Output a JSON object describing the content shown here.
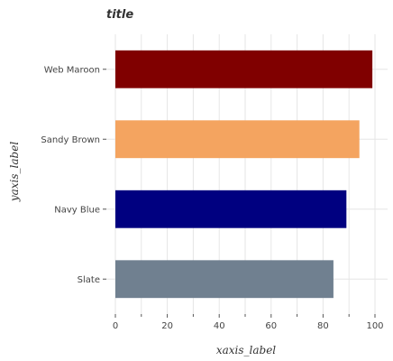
{
  "chart_data": {
    "type": "bar",
    "orientation": "horizontal",
    "title": "title",
    "xlabel": "xaxis_label",
    "ylabel": "yaxis_label",
    "categories": [
      "Web Maroon",
      "Sandy Brown",
      "Navy Blue",
      "Slate"
    ],
    "values": [
      99,
      94,
      89,
      84
    ],
    "colors": [
      "#800000",
      "#f4a460",
      "#000080",
      "#708090"
    ],
    "xlim": [
      0,
      100
    ],
    "xticks": [
      0,
      20,
      40,
      60,
      80,
      100
    ],
    "xtick_labels": [
      "0",
      "20",
      "40",
      "60",
      "80",
      "100"
    ],
    "grid": true,
    "legend": "none"
  }
}
